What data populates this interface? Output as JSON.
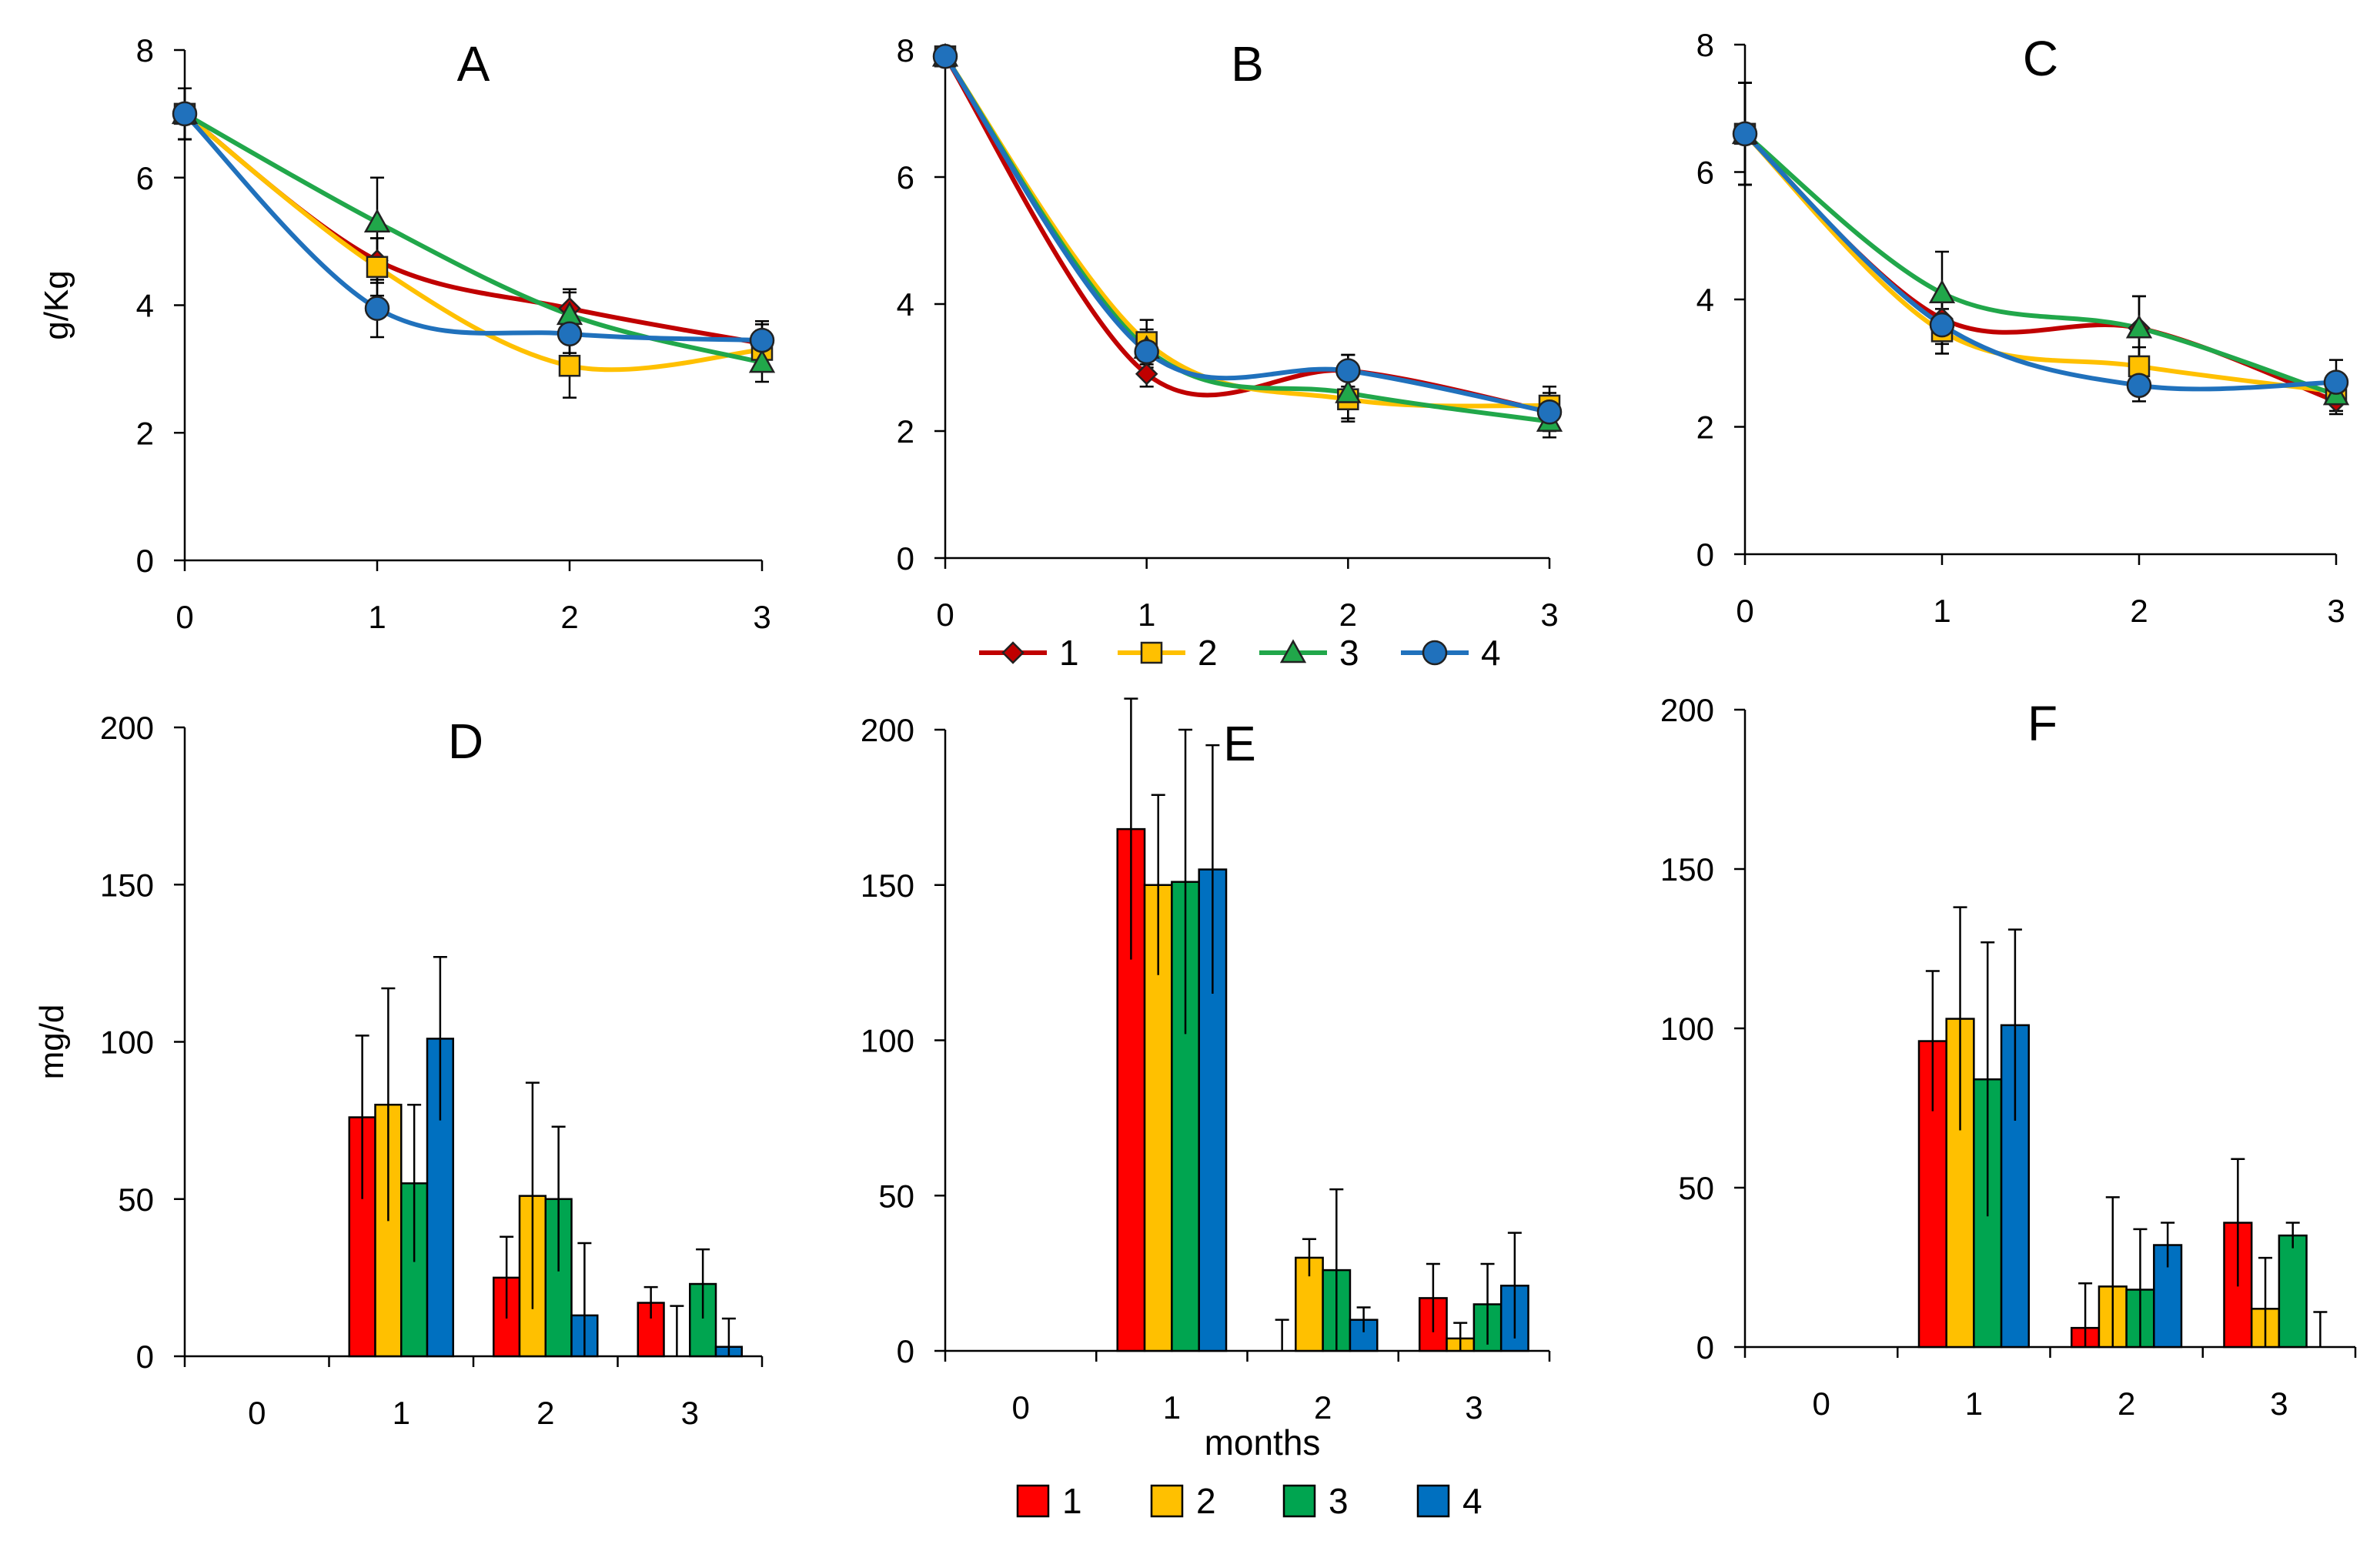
{
  "chart_data": [
    {
      "panel": "A",
      "type": "line",
      "title": "A",
      "ylabel": "g/Kg",
      "xlabel": "",
      "x": [
        0,
        1,
        2,
        3
      ],
      "ylim": [
        0,
        8
      ],
      "yticks": [
        0,
        2,
        4,
        6,
        8
      ],
      "grid": false,
      "series": [
        {
          "name": "1",
          "values": [
            7.0,
            4.7,
            3.95,
            3.4
          ],
          "err": [
            0.4,
            0.35,
            0.3,
            0.3
          ]
        },
        {
          "name": "2",
          "values": [
            7.0,
            4.6,
            3.05,
            3.3
          ],
          "err": [
            0.4,
            0.45,
            0.5,
            0.3
          ]
        },
        {
          "name": "3",
          "values": [
            7.0,
            5.3,
            3.85,
            3.1
          ],
          "err": [
            0.4,
            0.7,
            0.35,
            0.3
          ]
        },
        {
          "name": "4",
          "values": [
            7.0,
            3.95,
            3.55,
            3.45
          ],
          "err": [
            0.4,
            0.45,
            0.3,
            0.3
          ]
        }
      ]
    },
    {
      "panel": "B",
      "type": "line",
      "title": "B",
      "ylabel": "",
      "xlabel": "",
      "x": [
        0,
        1,
        2,
        3
      ],
      "ylim": [
        0,
        8
      ],
      "yticks": [
        0,
        2,
        4,
        6,
        8
      ],
      "grid": false,
      "series": [
        {
          "name": "1",
          "values": [
            7.9,
            2.9,
            2.95,
            2.3
          ],
          "err": [
            0.15,
            0.2,
            0.25,
            0.25
          ]
        },
        {
          "name": "2",
          "values": [
            7.9,
            3.4,
            2.5,
            2.4
          ],
          "err": [
            0.15,
            0.35,
            0.35,
            0.3
          ]
        },
        {
          "name": "3",
          "values": [
            7.9,
            3.3,
            2.6,
            2.15
          ],
          "err": [
            0.15,
            0.3,
            0.4,
            0.25
          ]
        },
        {
          "name": "4",
          "values": [
            7.9,
            3.25,
            2.95,
            2.3
          ],
          "err": [
            0.15,
            0.3,
            0.25,
            0.3
          ]
        }
      ]
    },
    {
      "panel": "C",
      "type": "line",
      "title": "C",
      "ylabel": "",
      "xlabel": "",
      "x": [
        0,
        1,
        2,
        3
      ],
      "ylim": [
        0,
        8
      ],
      "yticks": [
        0,
        2,
        4,
        6,
        8
      ],
      "grid": false,
      "series": [
        {
          "name": "1",
          "values": [
            6.6,
            3.7,
            3.55,
            2.4
          ],
          "err": [
            0.8,
            0.4,
            0.5,
            0.2
          ]
        },
        {
          "name": "2",
          "values": [
            6.6,
            3.5,
            2.95,
            2.55
          ],
          "err": [
            0.8,
            0.35,
            0.3,
            0.2
          ]
        },
        {
          "name": "3",
          "values": [
            6.6,
            4.1,
            3.55,
            2.5
          ],
          "err": [
            0.8,
            0.65,
            0.5,
            0.25
          ]
        },
        {
          "name": "4",
          "values": [
            6.6,
            3.6,
            2.65,
            2.7
          ],
          "err": [
            0.8,
            0.45,
            0.25,
            0.35
          ]
        }
      ]
    },
    {
      "panel": "D",
      "type": "bar",
      "title": "D",
      "ylabel": "mg/d",
      "xlabel": "",
      "categories": [
        "0",
        "1",
        "2",
        "3"
      ],
      "ylim": [
        0,
        200
      ],
      "yticks": [
        0,
        50,
        100,
        150,
        200
      ],
      "grid": false,
      "series": [
        {
          "name": "1",
          "values": [
            0,
            76,
            25,
            17
          ],
          "err": [
            0,
            26,
            13,
            5
          ]
        },
        {
          "name": "2",
          "values": [
            0,
            80,
            51,
            0
          ],
          "err": [
            0,
            37,
            36,
            16
          ]
        },
        {
          "name": "3",
          "values": [
            0,
            55,
            50,
            23
          ],
          "err": [
            0,
            25,
            23,
            11
          ]
        },
        {
          "name": "4",
          "values": [
            0,
            101,
            13,
            3
          ],
          "err": [
            0,
            26,
            23,
            9
          ]
        }
      ]
    },
    {
      "panel": "E",
      "type": "bar",
      "title": "E",
      "ylabel": "",
      "xlabel": "months",
      "categories": [
        "0",
        "1",
        "2",
        "3"
      ],
      "ylim": [
        0,
        200
      ],
      "yticks": [
        0,
        50,
        100,
        150,
        200
      ],
      "grid": false,
      "series": [
        {
          "name": "1",
          "values": [
            0,
            168,
            0,
            17
          ],
          "err": [
            0,
            42,
            10,
            11
          ]
        },
        {
          "name": "2",
          "values": [
            0,
            150,
            30,
            4
          ],
          "err": [
            0,
            29,
            6,
            5
          ]
        },
        {
          "name": "3",
          "values": [
            0,
            151,
            26,
            15
          ],
          "err": [
            0,
            49,
            26,
            13
          ]
        },
        {
          "name": "4",
          "values": [
            0,
            155,
            10,
            21
          ],
          "err": [
            0,
            40,
            4,
            17
          ]
        }
      ]
    },
    {
      "panel": "F",
      "type": "bar",
      "title": "F",
      "ylabel": "",
      "xlabel": "",
      "categories": [
        "0",
        "1",
        "2",
        "3"
      ],
      "ylim": [
        0,
        200
      ],
      "yticks": [
        0,
        50,
        100,
        150,
        200
      ],
      "grid": false,
      "series": [
        {
          "name": "1",
          "values": [
            0,
            96,
            6,
            39
          ],
          "err": [
            0,
            22,
            14,
            20
          ]
        },
        {
          "name": "2",
          "values": [
            0,
            103,
            19,
            12
          ],
          "err": [
            0,
            35,
            28,
            16
          ]
        },
        {
          "name": "3",
          "values": [
            0,
            84,
            18,
            35
          ],
          "err": [
            0,
            43,
            19,
            4
          ]
        },
        {
          "name": "4",
          "values": [
            0,
            101,
            32,
            0
          ],
          "err": [
            0,
            30,
            7,
            11
          ]
        }
      ]
    }
  ],
  "legends": {
    "line_legend": {
      "entries": [
        "1",
        "2",
        "3",
        "4"
      ],
      "colors": [
        "#c00000",
        "#ffc000",
        "#21a74a",
        "#2071bc"
      ],
      "markers": [
        "diamond",
        "square",
        "triangle",
        "circle"
      ]
    },
    "bar_legend": {
      "entries": [
        "1",
        "2",
        "3",
        "4"
      ],
      "colors": [
        "#ff0000",
        "#ffc000",
        "#00a550",
        "#0070c0"
      ]
    }
  }
}
